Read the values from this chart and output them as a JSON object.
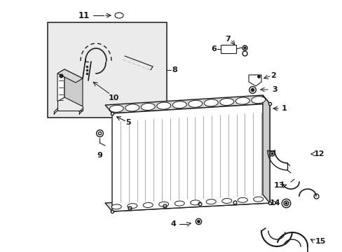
{
  "bg_color": "#ffffff",
  "line_color": "#1a1a1a",
  "gray_fill": "#e8e8e8",
  "light_gray": "#cccccc",
  "rad_gray": "#d8d8d8",
  "inset_fill": "#ebebeb"
}
